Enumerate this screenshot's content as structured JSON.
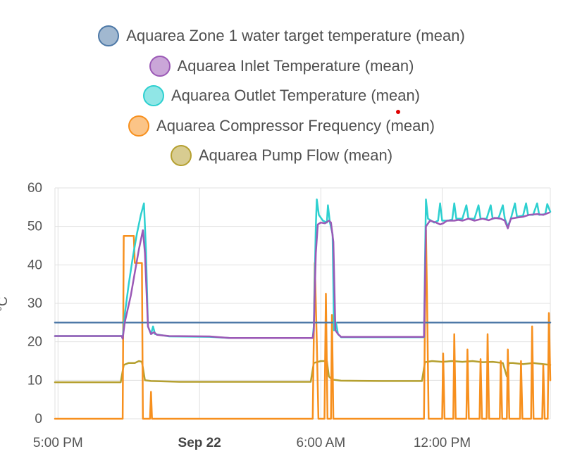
{
  "colors": {
    "zone_target": "#4e79a7",
    "inlet": "#9b59b6",
    "outlet": "#2ed0d0",
    "compressor": "#f7901e",
    "pump": "#b5a030"
  },
  "chart_data": {
    "type": "line",
    "ylabel": "°C",
    "ylim": [
      0,
      60
    ],
    "yticks": [
      "0",
      "10",
      "20",
      "30",
      "40",
      "50",
      "60"
    ],
    "xticks": [
      {
        "label": "5:00 PM",
        "hour": 17,
        "bold": false
      },
      {
        "label": "Sep 22",
        "hour": 24,
        "bold": true
      },
      {
        "label": "6:00 AM",
        "hour": 30,
        "bold": false
      },
      {
        "label": "12:00 PM",
        "hour": 36,
        "bold": false
      }
    ],
    "x_domain_hours": [
      16.85,
      41.35
    ],
    "grid": true,
    "legend_position": "top-center",
    "series": [
      {
        "name": "Aquarea Zone 1 water target temperature (mean)",
        "key": "zone_target",
        "points": [
          [
            16.85,
            25
          ],
          [
            41.35,
            25
          ]
        ]
      },
      {
        "name": "Aquarea Inlet Temperature (mean)",
        "key": "inlet",
        "points": [
          [
            16.85,
            21.5
          ],
          [
            20.15,
            21.5
          ],
          [
            20.2,
            20.8
          ],
          [
            20.3,
            25
          ],
          [
            20.6,
            32
          ],
          [
            20.8,
            38
          ],
          [
            21.0,
            44
          ],
          [
            21.2,
            49
          ],
          [
            21.3,
            43
          ],
          [
            21.45,
            24
          ],
          [
            21.6,
            22
          ],
          [
            21.75,
            22.5
          ],
          [
            21.9,
            21.8
          ],
          [
            22.5,
            21.5
          ],
          [
            24.5,
            21.4
          ],
          [
            25.5,
            21
          ],
          [
            29.6,
            21
          ],
          [
            29.65,
            23
          ],
          [
            29.75,
            43
          ],
          [
            29.85,
            50.5
          ],
          [
            30.0,
            51
          ],
          [
            30.2,
            50.8
          ],
          [
            30.4,
            51.5
          ],
          [
            30.5,
            51
          ],
          [
            30.62,
            46
          ],
          [
            30.72,
            23
          ],
          [
            30.85,
            22
          ],
          [
            31.0,
            21.3
          ],
          [
            35.1,
            21.3
          ],
          [
            35.15,
            35
          ],
          [
            35.2,
            50
          ],
          [
            35.4,
            51.5
          ],
          [
            35.7,
            51
          ],
          [
            35.9,
            50.5
          ],
          [
            36.05,
            50.8
          ],
          [
            36.25,
            51.5
          ],
          [
            36.6,
            51.5
          ],
          [
            36.8,
            51.7
          ],
          [
            37.0,
            51.5
          ],
          [
            37.3,
            52
          ],
          [
            37.6,
            51.5
          ],
          [
            38.0,
            52
          ],
          [
            38.3,
            51.6
          ],
          [
            38.6,
            52.2
          ],
          [
            38.9,
            52
          ],
          [
            39.1,
            51.5
          ],
          [
            39.25,
            49.5
          ],
          [
            39.4,
            52
          ],
          [
            39.7,
            52.3
          ],
          [
            40.0,
            52.5
          ],
          [
            40.3,
            53
          ],
          [
            40.7,
            53.2
          ],
          [
            41.0,
            53
          ],
          [
            41.3,
            53.6
          ]
        ]
      },
      {
        "name": "Aquarea Outlet Temperature (mean)",
        "key": "outlet",
        "points": [
          [
            16.85,
            21.5
          ],
          [
            20.15,
            21.5
          ],
          [
            20.2,
            21
          ],
          [
            20.3,
            27
          ],
          [
            20.5,
            35
          ],
          [
            20.7,
            42
          ],
          [
            20.9,
            48
          ],
          [
            21.1,
            53
          ],
          [
            21.25,
            56
          ],
          [
            21.35,
            44
          ],
          [
            21.45,
            24
          ],
          [
            21.6,
            22
          ],
          [
            21.7,
            24
          ],
          [
            21.8,
            22
          ],
          [
            22.5,
            21.4
          ],
          [
            24.5,
            21.3
          ],
          [
            25.5,
            21
          ],
          [
            29.6,
            21
          ],
          [
            29.65,
            24
          ],
          [
            29.75,
            50
          ],
          [
            29.8,
            57
          ],
          [
            29.9,
            53
          ],
          [
            30.1,
            51.5
          ],
          [
            30.3,
            51
          ],
          [
            30.35,
            55.5
          ],
          [
            30.45,
            51
          ],
          [
            30.58,
            48
          ],
          [
            30.65,
            23
          ],
          [
            30.75,
            25
          ],
          [
            30.85,
            22
          ],
          [
            31.0,
            21.2
          ],
          [
            35.1,
            21.2
          ],
          [
            35.15,
            40
          ],
          [
            35.2,
            57
          ],
          [
            35.3,
            52
          ],
          [
            35.6,
            51
          ],
          [
            35.8,
            51.5
          ],
          [
            35.9,
            56
          ],
          [
            36.0,
            51.5
          ],
          [
            36.3,
            51.5
          ],
          [
            36.5,
            51.8
          ],
          [
            36.6,
            56
          ],
          [
            36.7,
            52
          ],
          [
            37.0,
            52
          ],
          [
            37.2,
            55.5
          ],
          [
            37.3,
            52
          ],
          [
            37.6,
            52
          ],
          [
            37.8,
            55.5
          ],
          [
            37.9,
            52
          ],
          [
            38.2,
            52
          ],
          [
            38.4,
            55.5
          ],
          [
            38.5,
            52
          ],
          [
            38.8,
            52.3
          ],
          [
            39.0,
            55.5
          ],
          [
            39.1,
            52
          ],
          [
            39.25,
            50
          ],
          [
            39.4,
            52
          ],
          [
            39.6,
            56
          ],
          [
            39.7,
            52.5
          ],
          [
            40.0,
            52.8
          ],
          [
            40.15,
            56
          ],
          [
            40.25,
            53
          ],
          [
            40.5,
            53
          ],
          [
            40.7,
            56
          ],
          [
            40.8,
            53
          ],
          [
            41.1,
            53.2
          ],
          [
            41.2,
            55.8
          ],
          [
            41.35,
            53.8
          ]
        ]
      },
      {
        "name": "Aquarea Compressor Frequency (mean)",
        "key": "compressor",
        "points": [
          [
            16.85,
            0
          ],
          [
            20.2,
            0
          ],
          [
            20.25,
            47.5
          ],
          [
            20.75,
            47.5
          ],
          [
            20.8,
            40.5
          ],
          [
            21.15,
            40.5
          ],
          [
            21.2,
            0
          ],
          [
            21.55,
            0
          ],
          [
            21.6,
            7
          ],
          [
            21.65,
            0
          ],
          [
            29.6,
            0
          ],
          [
            29.7,
            40.5
          ],
          [
            29.8,
            20
          ],
          [
            29.88,
            0
          ],
          [
            30.18,
            0
          ],
          [
            30.25,
            32.5
          ],
          [
            30.33,
            0
          ],
          [
            30.5,
            0
          ],
          [
            30.55,
            27
          ],
          [
            30.62,
            0
          ],
          [
            35.1,
            0
          ],
          [
            35.15,
            27
          ],
          [
            35.2,
            49
          ],
          [
            35.25,
            32
          ],
          [
            35.33,
            0
          ],
          [
            36.0,
            0
          ],
          [
            36.05,
            17
          ],
          [
            36.12,
            0
          ],
          [
            36.55,
            0
          ],
          [
            36.6,
            22
          ],
          [
            36.67,
            0
          ],
          [
            37.2,
            0
          ],
          [
            37.25,
            18
          ],
          [
            37.32,
            0
          ],
          [
            37.85,
            0
          ],
          [
            37.9,
            15.5
          ],
          [
            37.97,
            0
          ],
          [
            38.2,
            0
          ],
          [
            38.25,
            22
          ],
          [
            38.32,
            0
          ],
          [
            38.85,
            0
          ],
          [
            38.9,
            15
          ],
          [
            38.97,
            0
          ],
          [
            39.2,
            0
          ],
          [
            39.25,
            18
          ],
          [
            39.32,
            0
          ],
          [
            39.85,
            0
          ],
          [
            39.9,
            15
          ],
          [
            39.97,
            0
          ],
          [
            40.4,
            0
          ],
          [
            40.45,
            24
          ],
          [
            40.52,
            0
          ],
          [
            40.95,
            0
          ],
          [
            41.0,
            14
          ],
          [
            41.07,
            0
          ],
          [
            41.22,
            0
          ],
          [
            41.28,
            27.5
          ],
          [
            41.35,
            10
          ]
        ]
      },
      {
        "name": "Aquarea Pump Flow (mean)",
        "key": "pump",
        "points": [
          [
            16.85,
            9.5
          ],
          [
            20.1,
            9.5
          ],
          [
            20.25,
            14
          ],
          [
            20.5,
            14.5
          ],
          [
            20.8,
            14.5
          ],
          [
            21.0,
            15
          ],
          [
            21.15,
            14.8
          ],
          [
            21.3,
            10
          ],
          [
            21.6,
            9.8
          ],
          [
            23.0,
            9.6
          ],
          [
            25.0,
            9.6
          ],
          [
            27.0,
            9.6
          ],
          [
            29.5,
            9.6
          ],
          [
            29.65,
            14.5
          ],
          [
            30.0,
            15
          ],
          [
            30.3,
            15
          ],
          [
            30.4,
            11
          ],
          [
            30.55,
            10.2
          ],
          [
            31.0,
            9.9
          ],
          [
            33.0,
            9.8
          ],
          [
            35.0,
            9.8
          ],
          [
            35.15,
            14.7
          ],
          [
            35.5,
            15
          ],
          [
            36.0,
            14.8
          ],
          [
            36.5,
            15
          ],
          [
            37.0,
            14.8
          ],
          [
            37.5,
            15
          ],
          [
            38.0,
            14.7
          ],
          [
            38.5,
            14.8
          ],
          [
            39.0,
            14.5
          ],
          [
            39.2,
            11
          ],
          [
            39.3,
            14.5
          ],
          [
            39.5,
            14.5
          ],
          [
            40.0,
            14.2
          ],
          [
            40.5,
            14.5
          ],
          [
            41.0,
            14.2
          ],
          [
            41.35,
            14
          ]
        ]
      }
    ]
  }
}
